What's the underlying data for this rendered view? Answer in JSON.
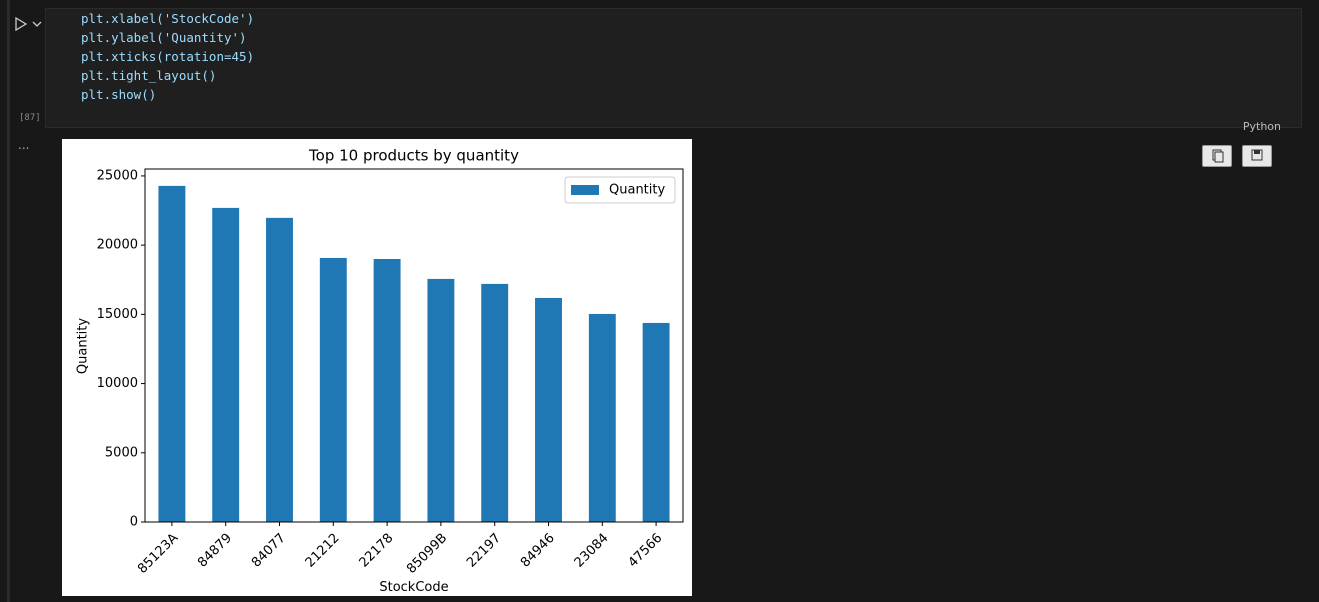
{
  "cell": {
    "code": [
      "plt.xlabel('StockCode')",
      "plt.ylabel('Quantity')",
      "plt.xticks(rotation=45)",
      "plt.tight_layout()",
      "plt.show()"
    ],
    "execution_count": "[87]",
    "language": "Python"
  },
  "output_prompt": "...",
  "chart_data": {
    "type": "bar",
    "title": "Top 10 products by quantity",
    "x_label": "StockCode",
    "y_label": "Quantity",
    "categories": [
      "85123A",
      "84879",
      "84077",
      "21212",
      "22178",
      "85099B",
      "22197",
      "84946",
      "23084",
      "47566"
    ],
    "series": [
      {
        "name": "Quantity",
        "color": "#1f77b4",
        "values": [
          24280,
          22690,
          21970,
          19075,
          19000,
          17560,
          17200,
          16185,
          15030,
          14380
        ]
      }
    ],
    "ylim": [
      0,
      25500
    ],
    "yticks": [
      0,
      5000,
      10000,
      15000,
      20000,
      25000
    ],
    "grid": false,
    "legend": "upper right"
  }
}
